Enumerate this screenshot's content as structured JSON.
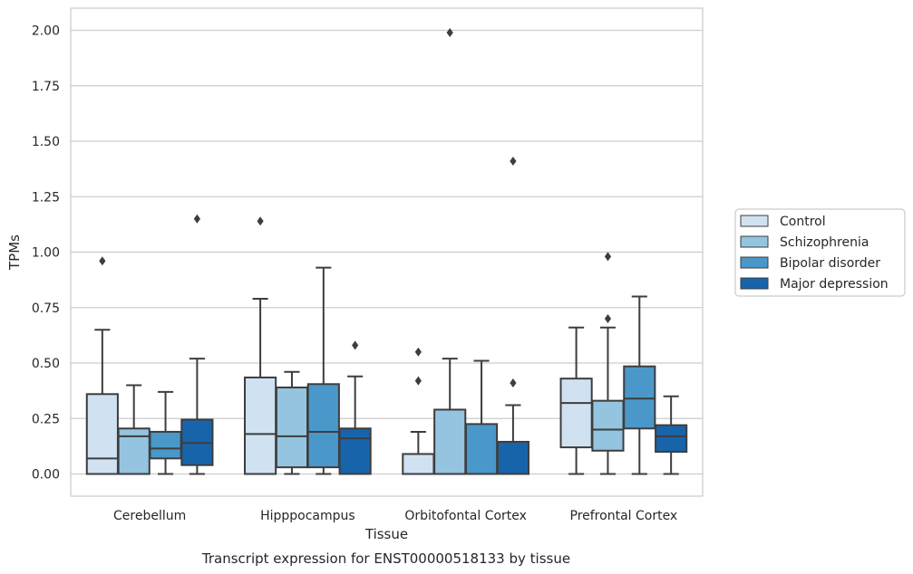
{
  "chart_data": {
    "type": "boxplot",
    "caption": "Transcript expression for ENST00000518133 by tissue",
    "xlabel": "Tissue",
    "ylabel": "TPMs",
    "ylim": [
      -0.1,
      2.1
    ],
    "yticks": [
      "0.00",
      "0.25",
      "0.50",
      "0.75",
      "1.00",
      "1.25",
      "1.50",
      "1.75",
      "2.00"
    ],
    "grid": "horizontal",
    "legend_position": "right",
    "categories": [
      "Cerebellum",
      "Hipppocampus",
      "Orbitofontal Cortex",
      "Prefrontal Cortex"
    ],
    "series": [
      {
        "name": "Control",
        "color": "#d0e1f2",
        "boxes": [
          {
            "whislo": 0.0,
            "q1": 0.0,
            "med": 0.07,
            "q3": 0.36,
            "whishi": 0.65,
            "fliers": [
              0.96
            ]
          },
          {
            "whislo": 0.0,
            "q1": 0.0,
            "med": 0.18,
            "q3": 0.435,
            "whishi": 0.79,
            "fliers": [
              1.14
            ]
          },
          {
            "whislo": 0.0,
            "q1": 0.0,
            "med": 0.0,
            "q3": 0.09,
            "whishi": 0.19,
            "fliers": [
              0.42,
              0.55
            ]
          },
          {
            "whislo": 0.0,
            "q1": 0.12,
            "med": 0.32,
            "q3": 0.43,
            "whishi": 0.66,
            "fliers": []
          }
        ]
      },
      {
        "name": "Schizophrenia",
        "color": "#94c4df",
        "boxes": [
          {
            "whislo": 0.0,
            "q1": 0.0,
            "med": 0.17,
            "q3": 0.205,
            "whishi": 0.4,
            "fliers": []
          },
          {
            "whislo": 0.0,
            "q1": 0.03,
            "med": 0.17,
            "q3": 0.39,
            "whishi": 0.46,
            "fliers": []
          },
          {
            "whislo": 0.0,
            "q1": 0.0,
            "med": 0.0,
            "q3": 0.29,
            "whishi": 0.52,
            "fliers": [
              1.99
            ]
          },
          {
            "whislo": 0.0,
            "q1": 0.105,
            "med": 0.2,
            "q3": 0.33,
            "whishi": 0.66,
            "fliers": [
              0.7,
              0.98
            ]
          }
        ]
      },
      {
        "name": "Bipolar disorder",
        "color": "#4a98c9",
        "boxes": [
          {
            "whislo": 0.0,
            "q1": 0.07,
            "med": 0.115,
            "q3": 0.19,
            "whishi": 0.37,
            "fliers": []
          },
          {
            "whislo": 0.0,
            "q1": 0.03,
            "med": 0.19,
            "q3": 0.405,
            "whishi": 0.93,
            "fliers": []
          },
          {
            "whislo": 0.0,
            "q1": 0.0,
            "med": 0.0,
            "q3": 0.225,
            "whishi": 0.51,
            "fliers": []
          },
          {
            "whislo": 0.0,
            "q1": 0.205,
            "med": 0.34,
            "q3": 0.485,
            "whishi": 0.8,
            "fliers": []
          }
        ]
      },
      {
        "name": "Major depression",
        "color": "#1764ab",
        "boxes": [
          {
            "whislo": 0.0,
            "q1": 0.04,
            "med": 0.14,
            "q3": 0.245,
            "whishi": 0.52,
            "fliers": [
              1.15
            ]
          },
          {
            "whislo": 0.0,
            "q1": 0.0,
            "med": 0.16,
            "q3": 0.205,
            "whishi": 0.44,
            "fliers": [
              0.58
            ]
          },
          {
            "whislo": 0.0,
            "q1": 0.0,
            "med": 0.0,
            "q3": 0.145,
            "whishi": 0.31,
            "fliers": [
              1.41,
              0.41
            ]
          },
          {
            "whislo": 0.0,
            "q1": 0.1,
            "med": 0.17,
            "q3": 0.22,
            "whishi": 0.35,
            "fliers": []
          }
        ]
      }
    ]
  }
}
